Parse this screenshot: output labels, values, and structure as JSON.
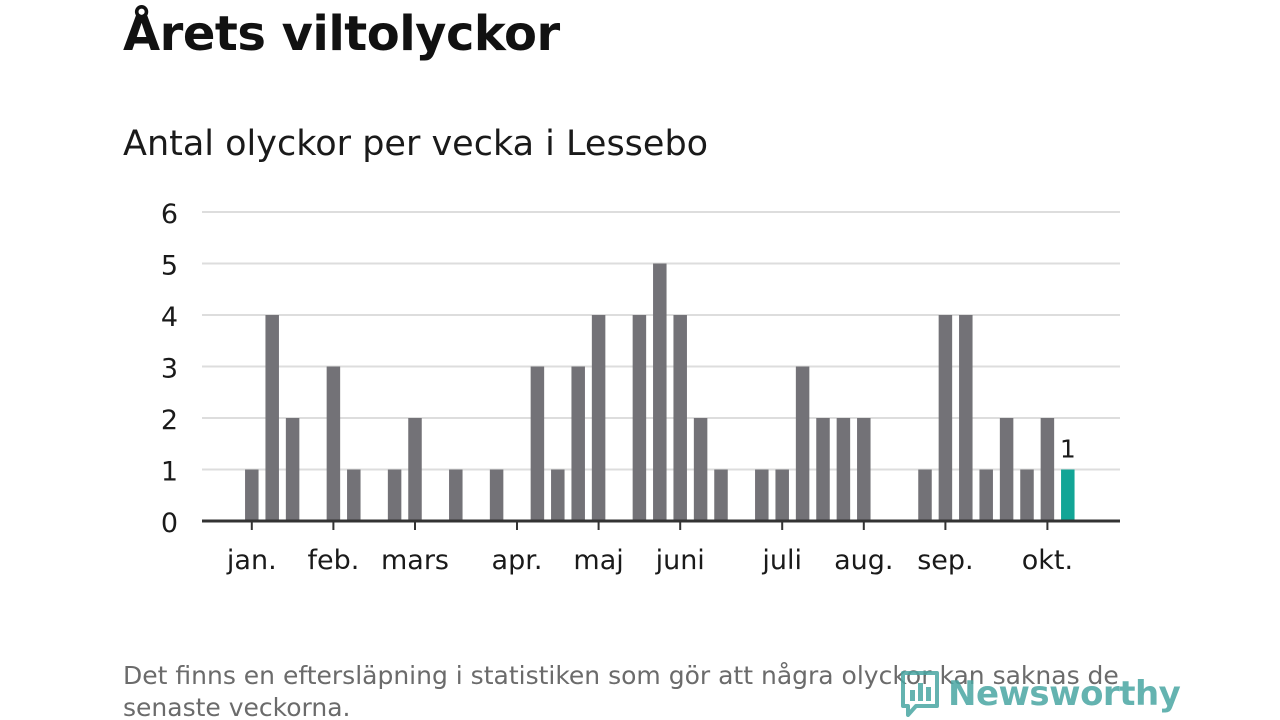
{
  "title": "Årets viltolyckor",
  "subtitle": "Antal olyckor per vecka i Lessebo",
  "footnote": "Det finns en eftersläpning i statistiken som gör att några olyckor kan saknas de senaste veckorna.",
  "logo": {
    "text": "Newsworthy",
    "icon": "bar-chart-speech-bubble-icon",
    "color": "#4aa6a3"
  },
  "colors": {
    "bar": "#737277",
    "highlight": "#12a596",
    "grid": "#dddddd",
    "axis": "#333333",
    "text": "#1a1a1a"
  },
  "chart_data": {
    "type": "bar",
    "title": "Antal olyckor per vecka i Lessebo",
    "xlabel": "",
    "ylabel": "",
    "ylim": [
      0,
      6
    ],
    "yticks": [
      "0",
      "1",
      "2",
      "3",
      "4",
      "5",
      "6"
    ],
    "grid": true,
    "week_slots": 45,
    "series": [
      {
        "values": [
          0,
          0,
          1,
          4,
          2,
          0,
          3,
          1,
          0,
          1,
          2,
          0,
          1,
          0,
          1,
          0,
          3,
          1,
          3,
          4,
          0,
          4,
          5,
          4,
          2,
          1,
          0,
          1,
          1,
          3,
          2,
          2,
          2,
          0,
          0,
          1,
          4,
          4,
          1,
          2,
          1,
          2,
          1,
          0,
          0
        ],
        "highlight_index": 42,
        "highlight_label": "1"
      }
    ],
    "month_labels": [
      "jan.",
      "feb.",
      "mars",
      "apr.",
      "maj",
      "juni",
      "juli",
      "aug.",
      "sep.",
      "okt."
    ],
    "month_start_week": [
      2,
      6,
      10,
      15,
      19,
      23,
      28,
      32,
      36,
      41
    ]
  }
}
